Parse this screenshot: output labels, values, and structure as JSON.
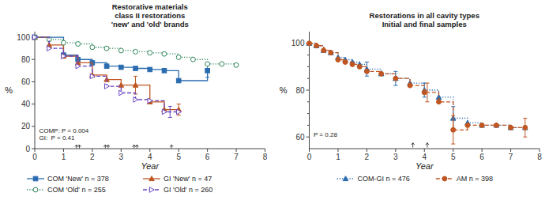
{
  "chart_data": [
    {
      "type": "step",
      "title": "Restorative materials\nclass II restorations\n'new' and 'old' brands",
      "xlabel": "Year",
      "ylabel": "%",
      "xlim": [
        0,
        8
      ],
      "ylim": [
        0,
        105
      ],
      "xticks": [
        0,
        1,
        2,
        3,
        4,
        5,
        6,
        7,
        8
      ],
      "yticks": [
        0,
        20,
        40,
        60,
        80,
        100
      ],
      "legend": "bottom",
      "series": [
        {
          "name": "COM 'New' n = 378",
          "marker": "square",
          "line_style": "solid",
          "x": [
            0,
            1.0,
            1.5,
            2.0,
            2.5,
            3.0,
            3.5,
            4.0,
            4.5,
            5.0,
            6.0
          ],
          "values": [
            100,
            84,
            80,
            77,
            74,
            73,
            72,
            71,
            70,
            61,
            70
          ],
          "error_x": [
            6.0
          ],
          "error_y": [
            70
          ],
          "errors": [
            6
          ]
        },
        {
          "name": "GI 'New' n = 47",
          "marker": "triangle",
          "line_style": "solid",
          "x": [
            0,
            0.5,
            1.0,
            1.5,
            2.0,
            2.5,
            3.0,
            3.5,
            4.0,
            4.5,
            5.0
          ],
          "values": [
            100,
            93,
            83,
            77,
            66,
            62,
            57,
            57,
            42,
            35,
            35
          ],
          "error_x": [
            3.5,
            5.0
          ],
          "error_y": [
            57,
            35
          ],
          "errors": [
            8,
            5
          ]
        },
        {
          "name": "COM 'Old' n = 255",
          "marker": "circle-open",
          "line_style": "dotted",
          "x": [
            0,
            0.5,
            1.0,
            1.5,
            2.0,
            2.5,
            3.0,
            3.5,
            4.0,
            4.5,
            5.0,
            5.5,
            6.0,
            6.5,
            7.0
          ],
          "values": [
            100,
            98,
            95,
            94,
            91,
            90,
            88,
            87,
            86,
            85,
            82,
            80,
            76,
            76,
            75
          ],
          "error_x": [],
          "error_y": [],
          "errors": []
        },
        {
          "name": "GI 'Old' n = 260",
          "marker": "triangle-right-open",
          "line_style": "dashed",
          "x": [
            0,
            0.5,
            1.0,
            1.5,
            2.0,
            2.5,
            3.0,
            3.5,
            4.0,
            4.5,
            5.0
          ],
          "values": [
            100,
            90,
            83,
            74,
            65,
            56,
            50,
            44,
            43,
            33,
            33
          ],
          "error_x": [
            4.7
          ],
          "error_y": [
            33
          ],
          "errors": [
            5
          ]
        }
      ],
      "census_arrows": [
        {
          "x": [
            1.45,
            2.45,
            3.45
          ],
          "y": [
            0.2,
            3.5
          ]
        },
        {
          "x": [
            1.55,
            2.55,
            3.55,
            4.75
          ],
          "y": [
            0.2,
            3.5
          ]
        }
      ],
      "annotations": [
        {
          "text": "COMP: P = 0.004",
          "x": 0.15,
          "y": 18
        },
        {
          "text": "GI:  P = 0.41",
          "x": 0.15,
          "y": 12
        }
      ]
    },
    {
      "type": "step",
      "title": "Restorations in all cavity types\nInitial and final samples",
      "xlabel": "Year",
      "ylabel": "%",
      "xlim": [
        0,
        8
      ],
      "ylim": [
        55,
        105
      ],
      "xticks": [
        0,
        1,
        2,
        3,
        4,
        5,
        6,
        7,
        8
      ],
      "yticks": [
        60,
        80,
        100
      ],
      "yticks_minor": [
        65,
        70,
        75,
        85,
        90,
        95
      ],
      "legend": "bottom",
      "series": [
        {
          "name": "COM-GI n = 476",
          "marker": "triangle",
          "line_style": "dotted",
          "x": [
            0,
            0.25,
            0.5,
            0.75,
            1.0,
            1.25,
            1.5,
            1.75,
            2.0,
            2.5,
            3.0,
            3.5,
            4.0,
            4.5,
            5.0,
            5.5,
            6.0,
            6.5,
            7.0,
            7.5
          ],
          "values": [
            100,
            99,
            97,
            96,
            94,
            93,
            92,
            91,
            89,
            87,
            85,
            83,
            80,
            77,
            68,
            66,
            65,
            65,
            64,
            64
          ],
          "error_x": [
            2.0,
            3.0,
            4.0,
            5.0
          ],
          "error_y": [
            89,
            85,
            80,
            68
          ],
          "errors": [
            3,
            3,
            3,
            5
          ]
        },
        {
          "name": "AM n = 398",
          "marker": "circle",
          "line_style": "dashed",
          "x": [
            0,
            0.25,
            0.5,
            0.75,
            1.0,
            1.25,
            1.5,
            1.75,
            2.0,
            2.5,
            3.0,
            3.5,
            4.0,
            4.5,
            5.0,
            5.5,
            6.0,
            6.5,
            7.0,
            7.5
          ],
          "values": [
            100,
            99,
            97,
            96,
            93,
            92,
            91,
            90,
            88,
            87,
            85,
            82,
            79,
            75,
            63,
            65,
            65,
            65,
            64,
            64
          ],
          "error_x": [
            4.1,
            5.0,
            7.5
          ],
          "error_y": [
            79,
            63,
            64
          ],
          "errors": [
            4,
            6,
            4
          ]
        }
      ],
      "census_arrows": [
        {
          "x": [
            3.6,
            4.1
          ],
          "y": [
            55.5,
            57.5
          ]
        }
      ],
      "annotations": [
        {
          "text": "P = 0.28",
          "x": 0.15,
          "y": 62
        }
      ]
    }
  ]
}
